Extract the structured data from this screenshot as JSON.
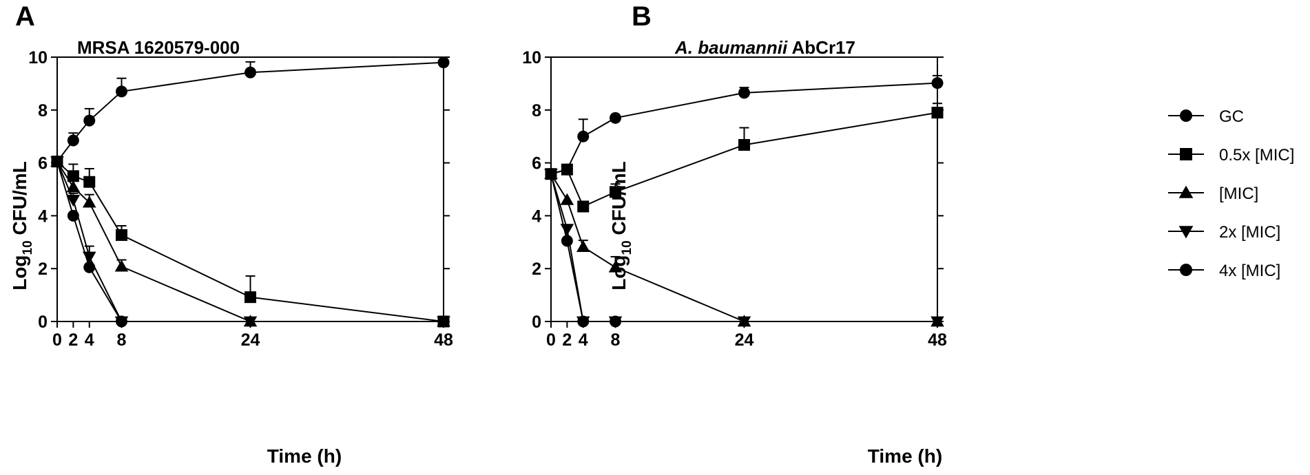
{
  "legend": {
    "entries": [
      {
        "label": "GC",
        "marker": "circle"
      },
      {
        "label": "0.5x [MIC]",
        "marker": "square"
      },
      {
        "label": "[MIC]",
        "marker": "triangle-up"
      },
      {
        "label": "2x [MIC]",
        "marker": "triangle-down"
      },
      {
        "label": "4x [MIC]",
        "marker": "circle"
      }
    ]
  },
  "chart_data": [
    {
      "type": "line",
      "panel_label": "A",
      "title": "MRSA 1620579-000",
      "title_italic_part": "",
      "title_rest": "",
      "xlabel": "Time (h)",
      "ylabel_main": "Log",
      "ylabel_sub": "10",
      "ylabel_rest": " CFU/mL",
      "x_ticks": [
        0,
        2,
        4,
        8,
        24,
        48
      ],
      "y_ticks": [
        0,
        2,
        4,
        6,
        8,
        10
      ],
      "xlim": [
        0,
        48
      ],
      "ylim": [
        0,
        10
      ],
      "x": [
        0,
        2,
        4,
        8,
        24,
        48
      ],
      "series": [
        {
          "name": "GC",
          "marker": "circle",
          "values": [
            6.05,
            6.85,
            7.6,
            8.7,
            9.42,
            9.8
          ],
          "error": [
            0,
            0.28,
            0.45,
            0.5,
            0.4,
            0
          ]
        },
        {
          "name": "0.5x [MIC]",
          "marker": "square",
          "values": [
            6.05,
            5.5,
            5.28,
            3.27,
            0.92,
            0
          ],
          "error": [
            0,
            0.45,
            0.5,
            0.35,
            0.8,
            0
          ]
        },
        {
          "name": "[MIC]",
          "marker": "triangle-up",
          "values": [
            6.05,
            5.08,
            4.5,
            2.08,
            0,
            0
          ],
          "error": [
            0,
            0.35,
            0.3,
            0.25,
            0,
            0
          ]
        },
        {
          "name": "2x [MIC]",
          "marker": "triangle-down",
          "values": [
            6.05,
            4.6,
            2.45,
            0,
            0,
            0
          ],
          "error": [
            0,
            0.25,
            0.4,
            0,
            0,
            0
          ]
        },
        {
          "name": "4x [MIC]",
          "marker": "circle",
          "values": [
            6.05,
            4.0,
            2.05,
            0
          ],
          "x": [
            0,
            2,
            4,
            8
          ],
          "error": [
            0,
            0,
            0,
            0
          ]
        }
      ]
    },
    {
      "type": "line",
      "panel_label": "B",
      "title": "",
      "title_italic_part": "A. baumannii",
      "title_rest": " AbCr17",
      "xlabel": "Time (h)",
      "ylabel_main": "Log",
      "ylabel_sub": "10",
      "ylabel_rest": " CFU/mL",
      "x_ticks": [
        0,
        2,
        4,
        8,
        24,
        48
      ],
      "y_ticks": [
        0,
        2,
        4,
        6,
        8,
        10
      ],
      "xlim": [
        0,
        48
      ],
      "ylim": [
        0,
        10
      ],
      "x": [
        0,
        2,
        4,
        8,
        24,
        48
      ],
      "series": [
        {
          "name": "GC",
          "marker": "circle",
          "values": [
            5.58,
            5.75,
            7.0,
            7.7,
            8.65,
            9.02
          ],
          "error": [
            0,
            0,
            0.65,
            0,
            0.2,
            0.28
          ]
        },
        {
          "name": "0.5x [MIC]",
          "marker": "square",
          "values": [
            5.58,
            5.75,
            4.35,
            4.9,
            6.68,
            7.9
          ],
          "error": [
            0,
            0,
            0,
            0.3,
            0.65,
            0.35
          ]
        },
        {
          "name": "[MIC]",
          "marker": "triangle-up",
          "values": [
            5.58,
            4.6,
            2.82,
            2.05,
            0,
            0
          ],
          "error": [
            0,
            0,
            0.25,
            0.4,
            0,
            0
          ]
        },
        {
          "name": "2x [MIC]",
          "marker": "triangle-down",
          "values": [
            5.58,
            3.5,
            0,
            0,
            0,
            0
          ],
          "error": [
            0,
            0,
            0,
            0,
            0,
            0
          ]
        },
        {
          "name": "4x [MIC]",
          "marker": "circle",
          "values": [
            5.58,
            3.05,
            0,
            0
          ],
          "x": [
            0,
            2,
            4,
            8
          ],
          "error": [
            0,
            0,
            0,
            0
          ]
        }
      ]
    }
  ]
}
